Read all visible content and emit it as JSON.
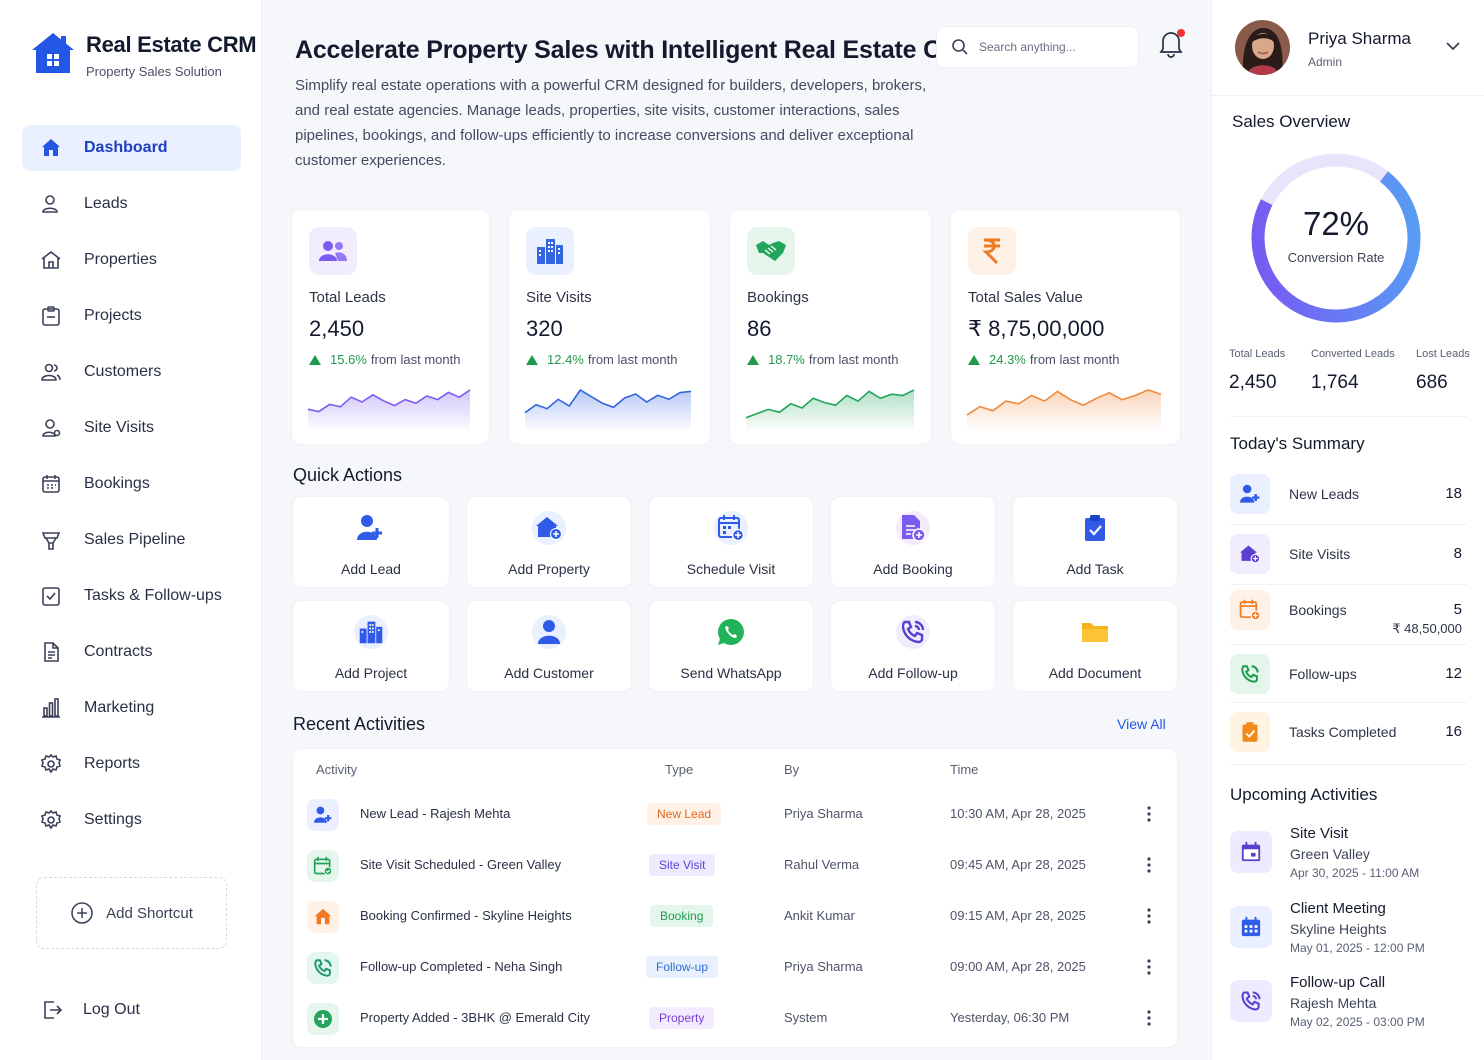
{
  "brand": {
    "name": "Real Estate CRM",
    "subtitle": "Property Sales Solution"
  },
  "nav": [
    {
      "label": "Dashboard",
      "icon": "home-icon",
      "active": true
    },
    {
      "label": "Leads",
      "icon": "user-icon"
    },
    {
      "label": "Properties",
      "icon": "house-icon"
    },
    {
      "label": "Projects",
      "icon": "clipboard-icon"
    },
    {
      "label": "Customers",
      "icon": "users-icon"
    },
    {
      "label": "Site Visits",
      "icon": "user-pin-icon"
    },
    {
      "label": "Bookings",
      "icon": "calendar-icon"
    },
    {
      "label": "Sales Pipeline",
      "icon": "funnel-icon"
    },
    {
      "label": "Tasks & Follow-ups",
      "icon": "task-check-icon"
    },
    {
      "label": "Contracts",
      "icon": "document-icon"
    },
    {
      "label": "Marketing",
      "icon": "bar-chart-icon"
    },
    {
      "label": "Reports",
      "icon": "gear-icon"
    },
    {
      "label": "Settings",
      "icon": "gear-icon"
    }
  ],
  "sidebar": {
    "add_shortcut": "Add Shortcut",
    "logout": "Log Out"
  },
  "hero": {
    "title": "Accelerate Property Sales with Intelligent Real Estate CRM",
    "description": "Simplify real estate operations with a powerful CRM designed for builders, developers, brokers, and real estate agencies. Manage leads, properties, site visits, customer interactions, sales pipelines, bookings, and follow-ups efficiently to increase conversions and deliver exceptional customer experiences."
  },
  "search": {
    "placeholder": "Search anything..."
  },
  "stats": [
    {
      "label": "Total Leads",
      "value": "2,450",
      "change": "15.6%",
      "change_suffix": "from last month",
      "color": "#7c5cf0",
      "icon": "users-icon",
      "spark": [
        14,
        12,
        18,
        16,
        24,
        20,
        26,
        21,
        17,
        22,
        19,
        25,
        22,
        28,
        24,
        30
      ]
    },
    {
      "label": "Site Visits",
      "value": "320",
      "change": "12.4%",
      "change_suffix": "from last month",
      "color": "#3466e0",
      "icon": "building-icon",
      "spark": [
        10,
        16,
        13,
        20,
        15,
        27,
        22,
        17,
        14,
        21,
        24,
        18,
        23,
        20,
        25,
        26
      ]
    },
    {
      "label": "Bookings",
      "value": "86",
      "change": "18.7%",
      "change_suffix": "from last month",
      "color": "#22a55a",
      "icon": "handshake-icon",
      "spark": [
        6,
        9,
        12,
        10,
        16,
        13,
        20,
        17,
        15,
        22,
        18,
        25,
        20,
        23,
        22,
        26
      ]
    },
    {
      "label": "Total Sales Value",
      "value": "₹ 8,75,00,000",
      "change": "24.3%",
      "change_suffix": "from last month",
      "color": "#f08a3c",
      "icon": "rupee-icon",
      "spark": [
        8,
        14,
        11,
        18,
        16,
        22,
        18,
        25,
        19,
        15,
        20,
        24,
        19,
        22,
        26,
        23
      ]
    }
  ],
  "quick_actions_title": "Quick Actions",
  "quick_actions": [
    {
      "label": "Add Lead",
      "icon": "add-user-icon",
      "color": "#2f5be6",
      "bg": "#ffffff"
    },
    {
      "label": "Add Property",
      "icon": "add-home-icon",
      "color": "#2f5be6",
      "bg": "#eaf0ff"
    },
    {
      "label": "Schedule Visit",
      "icon": "calendar-add-icon",
      "color": "#2f5be6",
      "bg": "#eaf0ff"
    },
    {
      "label": "Add Booking",
      "icon": "document-add-icon",
      "color": "#7c5cf0",
      "bg": "#f1edff"
    },
    {
      "label": "Add Task",
      "icon": "clipboard-check-icon",
      "color": "#2f5be6",
      "bg": "#ffffff"
    },
    {
      "label": "Add Project",
      "icon": "building-icon",
      "color": "#2f5be6",
      "bg": "#eaf0ff"
    },
    {
      "label": "Add Customer",
      "icon": "user-icon",
      "color": "#2f5be6",
      "bg": "#eaf0ff"
    },
    {
      "label": "Send WhatsApp",
      "icon": "whatsapp-icon",
      "color": "#22b35a",
      "bg": "#ffffff"
    },
    {
      "label": "Add Follow-up",
      "icon": "phone-icon",
      "color": "#5a3fd0",
      "bg": "#f1edff"
    },
    {
      "label": "Add Document",
      "icon": "folder-icon",
      "color": "#f6b21a",
      "bg": "#ffffff"
    }
  ],
  "recent": {
    "title": "Recent Activities",
    "view_all": "View All",
    "headers": [
      "Activity",
      "Type",
      "By",
      "Time"
    ],
    "rows": [
      {
        "activity": "New Lead - Rajesh Mehta",
        "type": "New Lead",
        "by": "Priya Sharma",
        "time": "10:30 AM, Apr 28, 2025",
        "icon": "add-user-icon",
        "color": "#2f5be6",
        "bg": "#eaf0ff",
        "type_color": "#e06a22",
        "type_bg": "#fff1e6"
      },
      {
        "activity": "Site Visit Scheduled - Green Valley",
        "type": "Site Visit",
        "by": "Rahul Verma",
        "time": "09:45 AM, Apr 28, 2025",
        "icon": "calendar-check-icon",
        "color": "#22a55a",
        "bg": "#e6f6ec",
        "type_color": "#5a43d6",
        "type_bg": "#efebff"
      },
      {
        "activity": "Booking Confirmed - Skyline Heights",
        "type": "Booking",
        "by": "Ankit Kumar",
        "time": "09:15 AM, Apr 28, 2025",
        "icon": "home-icon",
        "color": "#f07a22",
        "bg": "#fff1e6",
        "type_color": "#1e9a4c",
        "type_bg": "#e4f6eb"
      },
      {
        "activity": "Follow-up Completed - Neha Singh",
        "type": "Follow-up",
        "by": "Priya Sharma",
        "time": "09:00 AM, Apr 28, 2025",
        "icon": "phone-icon",
        "color": "#1e9a6c",
        "bg": "#e4f6ef",
        "type_color": "#2f6bd6",
        "type_bg": "#e8f0fd"
      },
      {
        "activity": "Property Added - 3BHK @ Emerald City",
        "type": "Property",
        "by": "System",
        "time": "Yesterday, 06:30 PM",
        "icon": "plus-circle-icon",
        "color": "#22a55a",
        "bg": "#e6f6ec",
        "type_color": "#7a3fd0",
        "type_bg": "#f3ebff"
      }
    ]
  },
  "profile": {
    "name": "Priya Sharma",
    "role": "Admin"
  },
  "sales_overview": {
    "title": "Sales Overview",
    "conversion_value": "72%",
    "conversion_fraction": 0.72,
    "conversion_label": "Conversion Rate",
    "metrics": [
      {
        "label": "Total Leads",
        "value": "2,450"
      },
      {
        "label": "Converted Leads",
        "value": "1,764"
      },
      {
        "label": "Lost Leads",
        "value": "686"
      }
    ]
  },
  "today_summary": {
    "title": "Today's Summary",
    "items": [
      {
        "label": "New Leads",
        "value": "18",
        "icon": "add-user-icon",
        "color": "#2f5be6",
        "bg": "#eaf0ff"
      },
      {
        "label": "Site Visits",
        "value": "8",
        "icon": "add-home-icon",
        "color": "#5a3fd0",
        "bg": "#f1edff"
      },
      {
        "label": "Bookings",
        "value": "5",
        "sub": "₹ 48,50,000",
        "icon": "calendar-add-icon",
        "color": "#f07a22",
        "bg": "#fff1e6"
      },
      {
        "label": "Follow-ups",
        "value": "12",
        "icon": "phone-icon",
        "color": "#1e9a4c",
        "bg": "#e4f6eb"
      },
      {
        "label": "Tasks Completed",
        "value": "16",
        "icon": "clipboard-check-icon",
        "color": "#f08a1c",
        "bg": "#fff3e2"
      }
    ]
  },
  "upcoming": {
    "title": "Upcoming Activities",
    "items": [
      {
        "title": "Site Visit",
        "sub": "Green Valley",
        "date": "Apr 30, 2025 - 11:00 AM",
        "icon": "calendar-icon",
        "color": "#5a3fd0",
        "bg": "#efebff"
      },
      {
        "title": "Client Meeting",
        "sub": "Skyline Heights",
        "date": "May 01, 2025 - 12:00 PM",
        "icon": "calendar-grid-icon",
        "color": "#2f5be6",
        "bg": "#eaf0ff"
      },
      {
        "title": "Follow-up Call",
        "sub": "Rajesh Mehta",
        "date": "May 02, 2025 - 03:00 PM",
        "icon": "phone-icon",
        "color": "#5a3fd0",
        "bg": "#efebff"
      }
    ]
  }
}
